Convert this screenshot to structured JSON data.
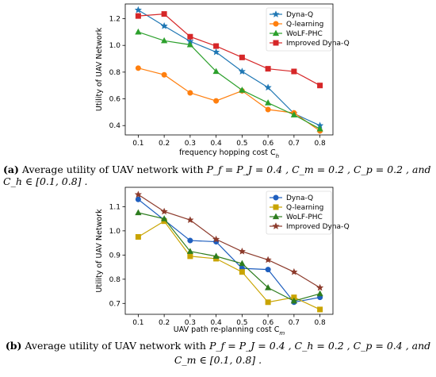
{
  "chart_data": [
    {
      "type": "line",
      "panel": "a",
      "xlabel": "frequency hopping cost C_h",
      "ylabel": "Utility of UAV Network",
      "x": [
        0.1,
        0.2,
        0.3,
        0.4,
        0.5,
        0.6,
        0.7,
        0.8
      ],
      "xlim": [
        0.05,
        0.85
      ],
      "ylim": [
        0.33,
        1.31
      ],
      "xticks": [
        "0.1",
        "0.2",
        "0.3",
        "0.4",
        "0.5",
        "0.6",
        "0.7",
        "0.8"
      ],
      "yticks": [
        0.4,
        0.6,
        0.8,
        1.0,
        1.2
      ],
      "ytick_labels": [
        "0.4",
        "0.6",
        "0.8",
        "1.0",
        "1.2"
      ],
      "legend": "top-right",
      "grid": false,
      "series": [
        {
          "name": "Dyna-Q",
          "color": "#1f77b4",
          "marker": "star",
          "values": [
            1.265,
            1.145,
            1.03,
            0.95,
            0.805,
            0.685,
            0.49,
            0.4
          ]
        },
        {
          "name": "Q-learning",
          "color": "#ff7f0e",
          "marker": "circle",
          "values": [
            0.83,
            0.78,
            0.645,
            0.585,
            0.66,
            0.52,
            0.495,
            0.36
          ]
        },
        {
          "name": "WoLF-PHC",
          "color": "#2ca02c",
          "marker": "triangle",
          "values": [
            1.1,
            1.035,
            1.005,
            0.805,
            0.665,
            0.57,
            0.48,
            0.375
          ]
        },
        {
          "name": "Improved Dyna-Q",
          "color": "#d62728",
          "marker": "square",
          "values": [
            1.22,
            1.235,
            1.065,
            0.995,
            0.91,
            0.825,
            0.805,
            0.7
          ]
        }
      ]
    },
    {
      "type": "line",
      "panel": "b",
      "xlabel": "UAV path re-planning cost C_m",
      "ylabel": "Utility of UAV Network",
      "x": [
        0.1,
        0.2,
        0.3,
        0.4,
        0.5,
        0.6,
        0.7,
        0.8
      ],
      "xlim": [
        0.05,
        0.85
      ],
      "ylim": [
        0.655,
        1.18
      ],
      "xticks": [
        "0.1",
        "0.2",
        "0.3",
        "0.4",
        "0.5",
        "0.6",
        "0.7",
        "0.8"
      ],
      "yticks": [
        0.7,
        0.8,
        0.9,
        1.0,
        1.1
      ],
      "ytick_labels": [
        "0.7",
        "0.8",
        "0.9",
        "1.0",
        "1.1"
      ],
      "legend": "top-right",
      "grid": false,
      "series": [
        {
          "name": "Dyna-Q",
          "color": "#1f5fbf",
          "marker": "circle",
          "values": [
            1.13,
            1.045,
            0.96,
            0.955,
            0.845,
            0.84,
            0.705,
            0.725
          ]
        },
        {
          "name": "Q-learning",
          "color": "#c9a400",
          "marker": "square",
          "values": [
            0.975,
            1.04,
            0.895,
            0.885,
            0.83,
            0.705,
            0.725,
            0.675
          ]
        },
        {
          "name": "WoLF-PHC",
          "color": "#2e7d1f",
          "marker": "triangle",
          "values": [
            1.075,
            1.05,
            0.915,
            0.895,
            0.865,
            0.765,
            0.71,
            0.74
          ]
        },
        {
          "name": "Improved Dyna-Q",
          "color": "#8c3a2b",
          "marker": "star",
          "values": [
            1.15,
            1.08,
            1.045,
            0.965,
            0.915,
            0.88,
            0.83,
            0.765
          ]
        }
      ]
    }
  ],
  "captions": {
    "a": {
      "label": "(a)",
      "text": "Average utility of UAV network with",
      "math": "P_f = P_J = 0.4 ,  C_m = 0.2 ,  C_p = 0.2 , and  C_h ∈ [0.1, 0.8] ."
    },
    "b": {
      "label": "(b)",
      "text": "Average utility of UAV network with",
      "math_line1": "P_f = P_J = 0.4 ,  C_h = 0.2 ,  C_p = 0.4 , and",
      "math_line2": "C_m ∈ [0.1, 0.8] ."
    }
  }
}
